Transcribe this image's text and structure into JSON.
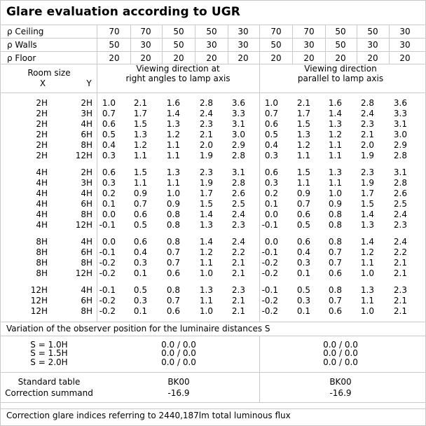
{
  "title": "Glare evaluation according to UGR",
  "reflectance": {
    "rows": [
      {
        "label": "ρ Ceiling",
        "values": [
          "70",
          "70",
          "50",
          "50",
          "30",
          "70",
          "70",
          "50",
          "50",
          "30"
        ]
      },
      {
        "label": "ρ Walls",
        "values": [
          "50",
          "30",
          "50",
          "30",
          "30",
          "50",
          "30",
          "50",
          "30",
          "30"
        ]
      },
      {
        "label": "ρ Floor",
        "values": [
          "20",
          "20",
          "20",
          "20",
          "20",
          "20",
          "20",
          "20",
          "20",
          "20"
        ]
      }
    ]
  },
  "header": {
    "room_size": "Room size",
    "x": "X",
    "y": "Y",
    "dir_left_line1": "Viewing direction at",
    "dir_left_line2": "right angles to lamp axis",
    "dir_right_line1": "Viewing direction",
    "dir_right_line2": "parallel to lamp axis"
  },
  "groups": [
    {
      "rows": [
        {
          "x": "2H",
          "y": "2H",
          "left": [
            "1.0",
            "2.1",
            "1.6",
            "2.8",
            "3.6"
          ],
          "right": [
            "1.0",
            "2.1",
            "1.6",
            "2.8",
            "3.6"
          ]
        },
        {
          "x": "2H",
          "y": "3H",
          "left": [
            "0.7",
            "1.7",
            "1.4",
            "2.4",
            "3.3"
          ],
          "right": [
            "0.7",
            "1.7",
            "1.4",
            "2.4",
            "3.3"
          ]
        },
        {
          "x": "2H",
          "y": "4H",
          "left": [
            "0.6",
            "1.5",
            "1.3",
            "2.3",
            "3.1"
          ],
          "right": [
            "0.6",
            "1.5",
            "1.3",
            "2.3",
            "3.1"
          ]
        },
        {
          "x": "2H",
          "y": "6H",
          "left": [
            "0.5",
            "1.3",
            "1.2",
            "2.1",
            "3.0"
          ],
          "right": [
            "0.5",
            "1.3",
            "1.2",
            "2.1",
            "3.0"
          ]
        },
        {
          "x": "2H",
          "y": "8H",
          "left": [
            "0.4",
            "1.2",
            "1.1",
            "2.0",
            "2.9"
          ],
          "right": [
            "0.4",
            "1.2",
            "1.1",
            "2.0",
            "2.9"
          ]
        },
        {
          "x": "2H",
          "y": "12H",
          "left": [
            "0.3",
            "1.1",
            "1.1",
            "1.9",
            "2.8"
          ],
          "right": [
            "0.3",
            "1.1",
            "1.1",
            "1.9",
            "2.8"
          ]
        }
      ]
    },
    {
      "rows": [
        {
          "x": "4H",
          "y": "2H",
          "left": [
            "0.6",
            "1.5",
            "1.3",
            "2.3",
            "3.1"
          ],
          "right": [
            "0.6",
            "1.5",
            "1.3",
            "2.3",
            "3.1"
          ]
        },
        {
          "x": "4H",
          "y": "3H",
          "left": [
            "0.3",
            "1.1",
            "1.1",
            "1.9",
            "2.8"
          ],
          "right": [
            "0.3",
            "1.1",
            "1.1",
            "1.9",
            "2.8"
          ]
        },
        {
          "x": "4H",
          "y": "4H",
          "left": [
            "0.2",
            "0.9",
            "1.0",
            "1.7",
            "2.6"
          ],
          "right": [
            "0.2",
            "0.9",
            "1.0",
            "1.7",
            "2.6"
          ]
        },
        {
          "x": "4H",
          "y": "6H",
          "left": [
            "0.1",
            "0.7",
            "0.9",
            "1.5",
            "2.5"
          ],
          "right": [
            "0.1",
            "0.7",
            "0.9",
            "1.5",
            "2.5"
          ]
        },
        {
          "x": "4H",
          "y": "8H",
          "left": [
            "0.0",
            "0.6",
            "0.8",
            "1.4",
            "2.4"
          ],
          "right": [
            "0.0",
            "0.6",
            "0.8",
            "1.4",
            "2.4"
          ]
        },
        {
          "x": "4H",
          "y": "12H",
          "left": [
            "-0.1",
            "0.5",
            "0.8",
            "1.3",
            "2.3"
          ],
          "right": [
            "-0.1",
            "0.5",
            "0.8",
            "1.3",
            "2.3"
          ]
        }
      ]
    },
    {
      "rows": [
        {
          "x": "8H",
          "y": "4H",
          "left": [
            "0.0",
            "0.6",
            "0.8",
            "1.4",
            "2.4"
          ],
          "right": [
            "0.0",
            "0.6",
            "0.8",
            "1.4",
            "2.4"
          ]
        },
        {
          "x": "8H",
          "y": "6H",
          "left": [
            "-0.1",
            "0.4",
            "0.7",
            "1.2",
            "2.2"
          ],
          "right": [
            "-0.1",
            "0.4",
            "0.7",
            "1.2",
            "2.2"
          ]
        },
        {
          "x": "8H",
          "y": "8H",
          "left": [
            "-0.2",
            "0.3",
            "0.7",
            "1.1",
            "2.1"
          ],
          "right": [
            "-0.2",
            "0.3",
            "0.7",
            "1.1",
            "2.1"
          ]
        },
        {
          "x": "8H",
          "y": "12H",
          "left": [
            "-0.2",
            "0.1",
            "0.6",
            "1.0",
            "2.1"
          ],
          "right": [
            "-0.2",
            "0.1",
            "0.6",
            "1.0",
            "2.1"
          ]
        }
      ]
    },
    {
      "rows": [
        {
          "x": "12H",
          "y": "4H",
          "left": [
            "-0.1",
            "0.5",
            "0.8",
            "1.3",
            "2.3"
          ],
          "right": [
            "-0.1",
            "0.5",
            "0.8",
            "1.3",
            "2.3"
          ]
        },
        {
          "x": "12H",
          "y": "6H",
          "left": [
            "-0.2",
            "0.3",
            "0.7",
            "1.1",
            "2.1"
          ],
          "right": [
            "-0.2",
            "0.3",
            "0.7",
            "1.1",
            "2.1"
          ]
        },
        {
          "x": "12H",
          "y": "8H",
          "left": [
            "-0.2",
            "0.1",
            "0.6",
            "1.0",
            "2.1"
          ],
          "right": [
            "-0.2",
            "0.1",
            "0.6",
            "1.0",
            "2.1"
          ]
        }
      ]
    }
  ],
  "variation": {
    "caption": "Variation of the observer position for the luminaire distances S",
    "rows": [
      {
        "label": "S = 1.0H",
        "left": "0.0 / 0.0",
        "right": "0.0 / 0.0"
      },
      {
        "label": "S = 1.5H",
        "left": "0.0 / 0.0",
        "right": "0.0 / 0.0"
      },
      {
        "label": "S = 2.0H",
        "left": "0.0 / 0.0",
        "right": "0.0 / 0.0"
      }
    ]
  },
  "standard": {
    "label_table": "Standard table",
    "label_corr": "Correction summand",
    "left_table": "BK00",
    "left_corr": "-16.9",
    "right_table": "BK00",
    "right_corr": "-16.9"
  },
  "footer": "Correction glare indices referring to 2440,187lm total luminous flux"
}
